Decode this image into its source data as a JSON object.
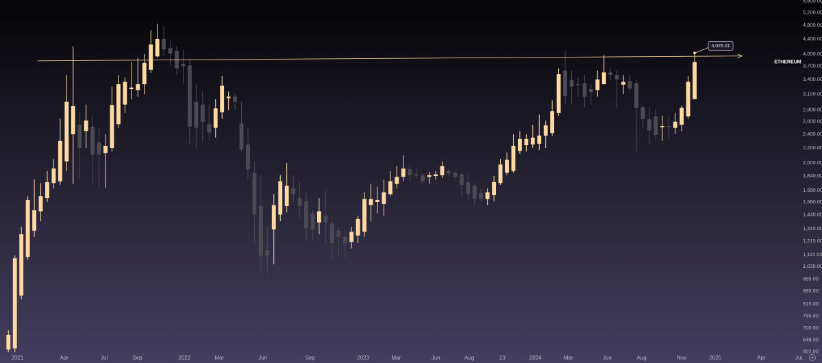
{
  "chart_data": {
    "type": "candlestick",
    "log_scale": true,
    "grid": false,
    "series": [
      {
        "name": "ETHEREUM",
        "up_color": "#ffd9a3",
        "down_color": "#4b4a52",
        "open": [
          610,
          615,
          860,
          1100,
          1300,
          1470,
          1600,
          1760,
          1780,
          2020,
          2400,
          2550,
          2450,
          2520,
          2280,
          2130,
          2200,
          2560,
          2900,
          3200,
          3180,
          3300,
          3620,
          3940,
          4400,
          4150,
          4080,
          3760,
          3720,
          2950,
          2900,
          2560,
          2500,
          2760,
          3020,
          3050,
          2570,
          2250,
          1880,
          1520,
          1150,
          1310,
          1440,
          1520,
          1700,
          1600,
          1570,
          1450,
          1370,
          1430,
          1360,
          1300,
          1250,
          1210,
          1260,
          1290,
          1530,
          1560,
          1540,
          1640,
          1750,
          1830,
          1920,
          1860,
          1850,
          1830,
          1840,
          1850,
          1900,
          1880,
          1860,
          1770,
          1730,
          1650,
          1590,
          1630,
          1760,
          1880,
          1900,
          2160,
          2240,
          2250,
          2260,
          2380,
          2420,
          2750,
          3600,
          3390,
          3300,
          3320,
          3200,
          3180,
          3300,
          3560,
          3500,
          3290,
          3370,
          3320,
          2850,
          2640,
          2690,
          2510,
          2530,
          2500,
          2550,
          2690,
          3000
        ],
        "high": [
          690,
          1110,
          1330,
          1620,
          1800,
          1760,
          1900,
          2050,
          2650,
          3500,
          4200,
          2750,
          2900,
          2700,
          2500,
          2400,
          3250,
          3500,
          3450,
          3800,
          3900,
          4000,
          4650,
          4850,
          4780,
          4350,
          4200,
          4100,
          3860,
          3300,
          3150,
          2900,
          3000,
          3480,
          3150,
          3100,
          2950,
          2500,
          2020,
          1850,
          1330,
          1640,
          1850,
          2000,
          1850,
          1780,
          1650,
          1480,
          1600,
          1680,
          1420,
          1330,
          1310,
          1330,
          1430,
          1660,
          1750,
          1720,
          1800,
          1900,
          1960,
          2100,
          1950,
          1930,
          1880,
          1890,
          1900,
          2020,
          1920,
          1900,
          1880,
          1880,
          1760,
          1700,
          1700,
          1840,
          2050,
          2140,
          2400,
          2450,
          2400,
          2550,
          2720,
          2620,
          2980,
          3650,
          4080,
          3600,
          3450,
          3500,
          3300,
          3600,
          3970,
          3650,
          3620,
          3500,
          3500,
          3400,
          2900,
          2850,
          2820,
          2700,
          2700,
          2750,
          2880,
          3480,
          4025.01
        ],
        "low": [
          600,
          600,
          840,
          1080,
          1250,
          1380,
          1560,
          1700,
          1740,
          1900,
          1750,
          1800,
          2200,
          1750,
          1720,
          1710,
          2150,
          2500,
          2750,
          3000,
          3050,
          3100,
          3550,
          3900,
          3950,
          3700,
          3500,
          3300,
          2250,
          2200,
          2300,
          2300,
          2350,
          2650,
          2800,
          2800,
          2150,
          1800,
          1200,
          1000,
          990,
          1050,
          1380,
          1460,
          1550,
          1400,
          1220,
          1220,
          1270,
          1200,
          1080,
          1100,
          1090,
          1160,
          1200,
          1250,
          1380,
          1450,
          1430,
          1620,
          1700,
          1780,
          1780,
          1810,
          1740,
          1750,
          1800,
          1820,
          1840,
          1800,
          1620,
          1580,
          1530,
          1560,
          1530,
          1570,
          1740,
          1850,
          1880,
          2120,
          2150,
          2200,
          2170,
          2200,
          2380,
          2700,
          2900,
          2900,
          3050,
          2850,
          2900,
          3050,
          3300,
          3380,
          2850,
          3100,
          3150,
          2150,
          2500,
          2250,
          2300,
          2300,
          2330,
          2400,
          2450,
          2650,
          3000
        ],
        "close": [
          670,
          1090,
          1270,
          1580,
          1480,
          1620,
          1770,
          1930,
          2300,
          2950,
          2870,
          2200,
          2620,
          2110,
          2110,
          2230,
          2890,
          3300,
          3350,
          3230,
          3300,
          3780,
          4250,
          4400,
          4120,
          4010,
          3650,
          3700,
          2520,
          2500,
          2600,
          2430,
          2830,
          3270,
          3050,
          2950,
          2180,
          1920,
          1440,
          1110,
          1110,
          1530,
          1780,
          1730,
          1640,
          1520,
          1320,
          1310,
          1470,
          1370,
          1200,
          1250,
          1200,
          1290,
          1400,
          1590,
          1590,
          1580,
          1660,
          1780,
          1830,
          1930,
          1850,
          1845,
          1780,
          1850,
          1860,
          1960,
          1870,
          1830,
          1740,
          1640,
          1590,
          1590,
          1660,
          1770,
          1980,
          2040,
          2230,
          2330,
          2330,
          2350,
          2380,
          2540,
          2780,
          3520,
          3060,
          3250,
          3280,
          3050,
          3140,
          3400,
          3560,
          3500,
          3400,
          3350,
          3210,
          2840,
          2640,
          2460,
          2390,
          2530,
          2510,
          2600,
          2840,
          3350,
          3800
        ]
      }
    ],
    "annotation": {
      "value": 4025.01,
      "label": "4,025.01"
    },
    "trendline": {
      "x": [
        4.5,
        113.3
      ],
      "y": [
        3830,
        3950
      ],
      "color": "#e8c89a"
    },
    "xlim": [
      -1.3,
      122.5
    ],
    "xticks": [
      {
        "value": 1.4,
        "label": "2021"
      },
      {
        "value": 8.6,
        "label": "Apr"
      },
      {
        "value": 14.8,
        "label": "Jul"
      },
      {
        "value": 19.9,
        "label": "Sep"
      },
      {
        "value": 27.2,
        "label": "2022"
      },
      {
        "value": 32.6,
        "label": "Mar"
      },
      {
        "value": 39.3,
        "label": "Jun"
      },
      {
        "value": 46.6,
        "label": "Sep"
      },
      {
        "value": 54.8,
        "label": "2023"
      },
      {
        "value": 59.9,
        "label": "Mar"
      },
      {
        "value": 66.0,
        "label": "Jun"
      },
      {
        "value": 71.2,
        "label": "Aug"
      },
      {
        "value": 76.3,
        "label": "23"
      },
      {
        "value": 81.4,
        "label": "2024"
      },
      {
        "value": 86.5,
        "label": "Mar"
      },
      {
        "value": 92.5,
        "label": "Jun"
      },
      {
        "value": 97.8,
        "label": "Aug"
      },
      {
        "value": 104.0,
        "label": "Nov"
      },
      {
        "value": 109.2,
        "label": "2025"
      },
      {
        "value": 116.3,
        "label": "Apr"
      },
      {
        "value": 122.1,
        "label": "Jul"
      }
    ],
    "ylim": [
      560,
      5640
    ],
    "yticks": [
      {
        "value": 5600,
        "label": "5,600.00"
      },
      {
        "value": 5200,
        "label": "5,200.00"
      },
      {
        "value": 4800,
        "label": "4,800.00"
      },
      {
        "value": 4400,
        "label": "4,400.00"
      },
      {
        "value": 4000,
        "label": "4,000.00"
      },
      {
        "value": 3700,
        "label": "3,700.00"
      },
      {
        "value": 3400,
        "label": "3,400.00"
      },
      {
        "value": 3100,
        "label": "3,100.00"
      },
      {
        "value": 2800,
        "label": "2,800.00"
      },
      {
        "value": 2600,
        "label": "2,600.00"
      },
      {
        "value": 2400,
        "label": "2,400.00"
      },
      {
        "value": 2200,
        "label": "2,200.00"
      },
      {
        "value": 2000,
        "label": "2,000.00"
      },
      {
        "value": 1840,
        "label": "1,840.00"
      },
      {
        "value": 1680,
        "label": "1,680.00"
      },
      {
        "value": 1560,
        "label": "1,560.00"
      },
      {
        "value": 1440,
        "label": "1,440.00"
      },
      {
        "value": 1315,
        "label": "1,315.00"
      },
      {
        "value": 1215,
        "label": "1,215.00"
      },
      {
        "value": 1115,
        "label": "1,115.00"
      },
      {
        "value": 1035,
        "label": "1,035.00"
      },
      {
        "value": 955,
        "label": "955.00"
      },
      {
        "value": 885,
        "label": "885.00"
      },
      {
        "value": 815,
        "label": "815.00"
      },
      {
        "value": 755,
        "label": "755.00"
      },
      {
        "value": 700,
        "label": "700.00"
      },
      {
        "value": 648,
        "label": "648.00"
      },
      {
        "value": 602,
        "label": "602.00"
      }
    ]
  }
}
